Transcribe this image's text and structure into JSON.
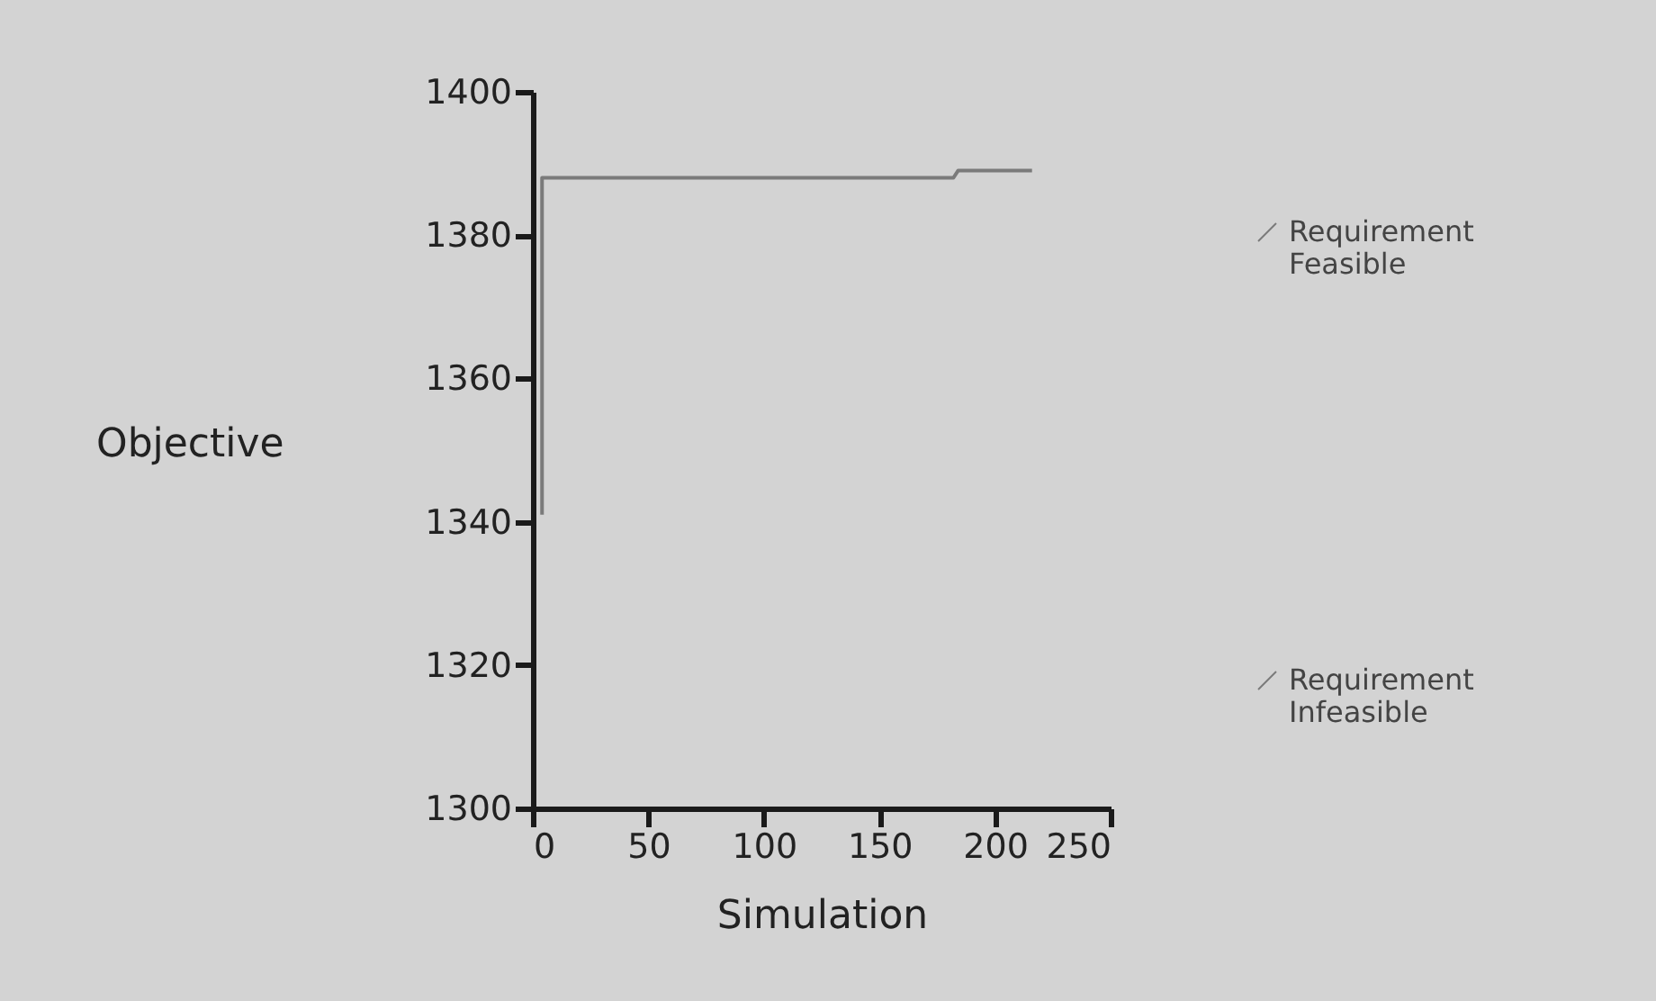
{
  "chart_data": {
    "type": "line",
    "xlabel": "Simulation",
    "ylabel": "Objective",
    "xlim": [
      0,
      250
    ],
    "xticks": [
      0,
      50,
      100,
      150,
      200,
      250
    ],
    "ylim": [
      1300,
      1400
    ],
    "yticks": [
      1300,
      1320,
      1340,
      1360,
      1380,
      1400
    ],
    "grid": false,
    "legend": "right",
    "marker": "none",
    "line_style": "solid",
    "series": [
      {
        "name": "Requirement Feasible",
        "color": "#7a7a7a",
        "x": [
          4,
          4,
          182,
          184,
          216
        ],
        "values": [
          1341,
          1388,
          1388,
          1389,
          1389
        ]
      },
      {
        "name": "Requirement Infeasible",
        "color": "#7a7a7a"
      }
    ]
  }
}
